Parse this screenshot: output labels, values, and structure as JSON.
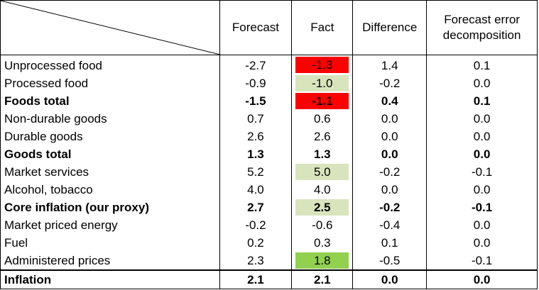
{
  "header": {
    "forecast": "Forecast",
    "fact": "Fact",
    "difference": "Difference",
    "decomposition_line1": "Forecast error",
    "decomposition_line2": "decomposition"
  },
  "colors": {
    "red": "#ff0000",
    "light_green": "#d8e4bc",
    "green": "#92d050"
  },
  "rows": [
    {
      "label": "Unprocessed food",
      "forecast": "-2.7",
      "fact": "-1.3",
      "difference": "1.4",
      "decomposition": "0.1",
      "bold": false,
      "fact_color": "red"
    },
    {
      "label": "Processed food",
      "forecast": "-0.9",
      "fact": "-1.0",
      "difference": "-0.2",
      "decomposition": "0.0",
      "bold": false,
      "fact_color": "light_green"
    },
    {
      "label": "Foods total",
      "forecast": "-1.5",
      "fact": "-1.1",
      "difference": "0.4",
      "decomposition": "0.1",
      "bold": true,
      "fact_color": "red"
    },
    {
      "label": "Non-durable goods",
      "forecast": "0.7",
      "fact": "0.6",
      "difference": "0.0",
      "decomposition": "0.0",
      "bold": false,
      "fact_color": "none"
    },
    {
      "label": "Durable goods",
      "forecast": "2.6",
      "fact": "2.6",
      "difference": "0.0",
      "decomposition": "0.0",
      "bold": false,
      "fact_color": "none"
    },
    {
      "label": "Goods total",
      "forecast": "1.3",
      "fact": "1.3",
      "difference": "0.0",
      "decomposition": "0.0",
      "bold": true,
      "fact_color": "none"
    },
    {
      "label": "Market services",
      "forecast": "5.2",
      "fact": "5.0",
      "difference": "-0.2",
      "decomposition": "-0.1",
      "bold": false,
      "fact_color": "light_green"
    },
    {
      "label": "Alcohol, tobacco",
      "forecast": "4.0",
      "fact": "4.0",
      "difference": "0.0",
      "decomposition": "0.0",
      "bold": false,
      "fact_color": "none"
    },
    {
      "label": "Core inflation (our proxy)",
      "forecast": "2.7",
      "fact": "2.5",
      "difference": "-0.2",
      "decomposition": "-0.1",
      "bold": true,
      "fact_color": "light_green"
    },
    {
      "label": "Market priced energy",
      "forecast": "-0.2",
      "fact": "-0.6",
      "difference": "-0.4",
      "decomposition": "0.0",
      "bold": false,
      "fact_color": "none"
    },
    {
      "label": "Fuel",
      "forecast": "0.2",
      "fact": "0.3",
      "difference": "0.1",
      "decomposition": "0.0",
      "bold": false,
      "fact_color": "none"
    },
    {
      "label": "Administered prices",
      "forecast": "2.3",
      "fact": "1.8",
      "difference": "-0.5",
      "decomposition": "-0.1",
      "bold": false,
      "fact_color": "green"
    }
  ],
  "total": {
    "label": "Inflation",
    "forecast": "2.1",
    "fact": "2.1",
    "difference": "0.0",
    "decomposition": "0.0"
  }
}
